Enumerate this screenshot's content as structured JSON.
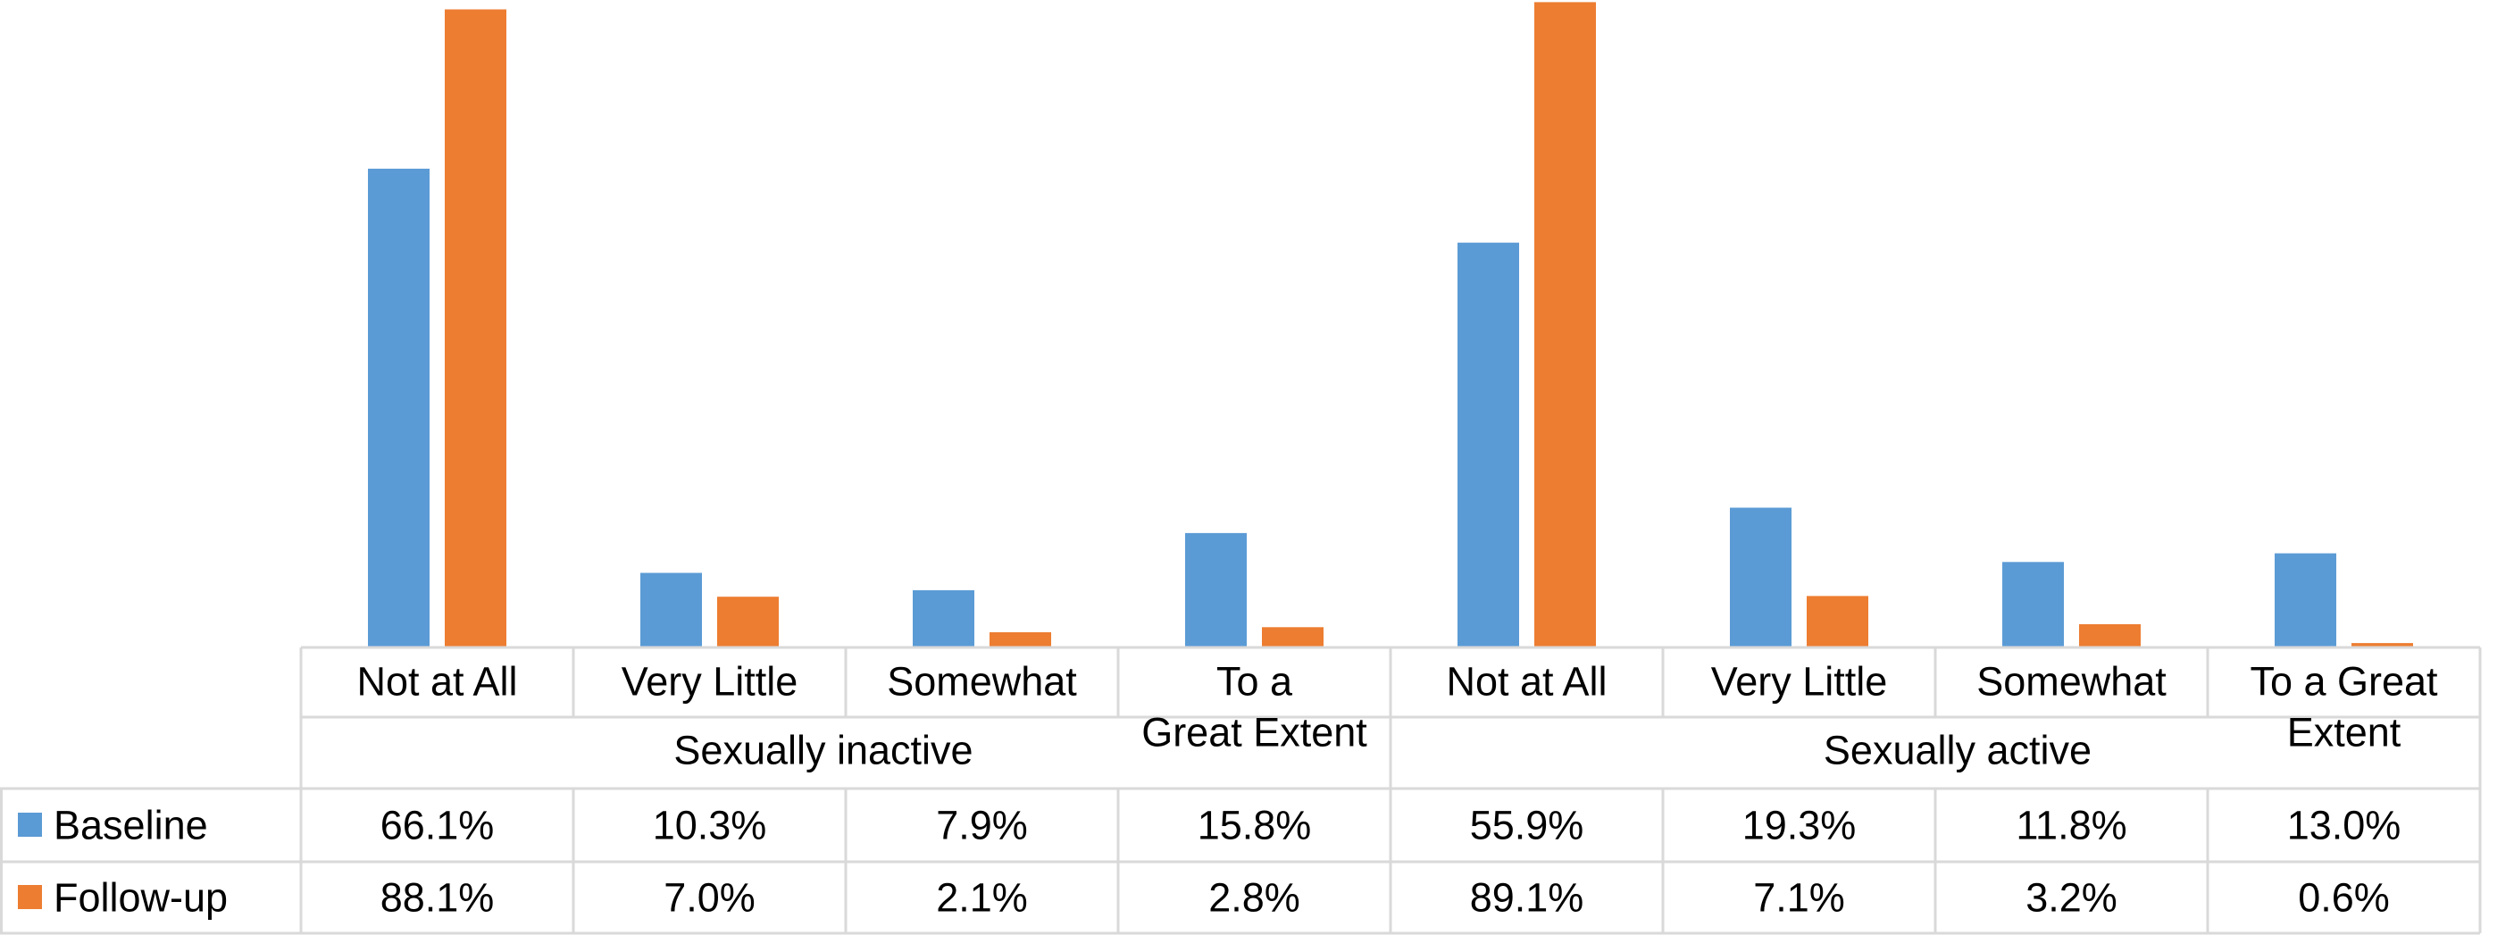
{
  "chart_data": {
    "type": "bar",
    "title": "",
    "xlabel": "",
    "ylabel": "",
    "ylim": [
      0,
      90
    ],
    "grid": false,
    "legend": "left-in-table",
    "groups": [
      {
        "name": "Sexually inactive",
        "categories": [
          "Not at All",
          "Very Little",
          "Somewhat",
          "To a Great Extent"
        ]
      },
      {
        "name": "Sexually active",
        "categories": [
          "Not at All",
          "Very Little",
          "Somewhat",
          "To a Great Extent"
        ]
      }
    ],
    "category_lines": [
      [
        "Not at All"
      ],
      [
        "Very Little"
      ],
      [
        "Somewhat"
      ],
      [
        "To a",
        "Great Extent"
      ],
      [
        "Not at All"
      ],
      [
        "Very Little"
      ],
      [
        "Somewhat"
      ],
      [
        "To a Great",
        "Extent"
      ]
    ],
    "series": [
      {
        "name": "Baseline",
        "color": "#5B9BD5",
        "values": [
          66.1,
          10.3,
          7.9,
          15.8,
          55.9,
          19.3,
          11.8,
          13.0
        ],
        "labels": [
          "66.1%",
          "10.3%",
          "7.9%",
          "15.8%",
          "55.9%",
          "19.3%",
          "11.8%",
          "13.0%"
        ]
      },
      {
        "name": "Follow-up",
        "color": "#ED7D31",
        "values": [
          88.1,
          7.0,
          2.1,
          2.8,
          89.1,
          7.1,
          3.2,
          0.6
        ],
        "labels": [
          "88.1%",
          "7.0%",
          "2.1%",
          "2.8%",
          "89.1%",
          "7.1%",
          "3.2%",
          "0.6%"
        ]
      }
    ]
  }
}
